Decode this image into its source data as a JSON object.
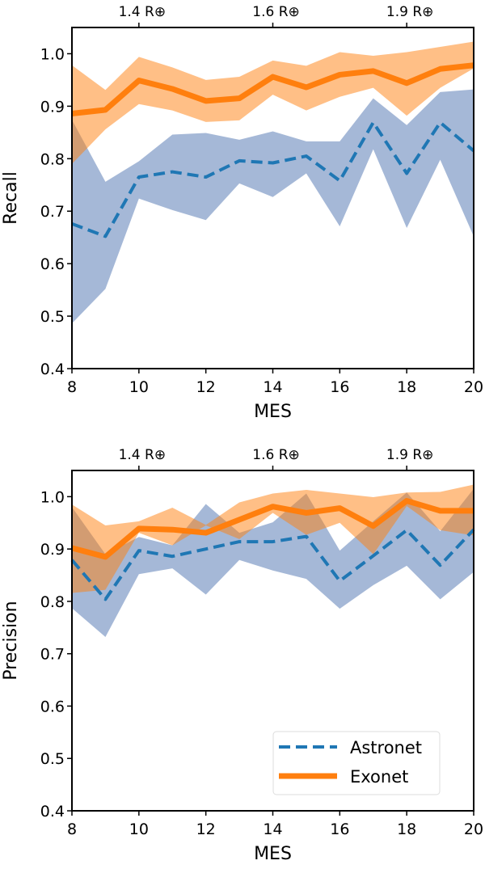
{
  "chart_data": [
    {
      "type": "line",
      "xlabel": "MES",
      "ylabel": "Recall",
      "xlim": [
        8,
        20
      ],
      "ylim": [
        0.4,
        1.05
      ],
      "xticks": [
        8,
        10,
        12,
        14,
        16,
        18,
        20
      ],
      "yticks": [
        0.4,
        0.5,
        0.6,
        0.7,
        0.8,
        0.9,
        1.0
      ],
      "ytick_labels": [
        "0.4",
        "0.5",
        "0.6",
        "0.7",
        "0.8",
        "0.9",
        "1.0"
      ],
      "secondary_xaxis": {
        "position": "top",
        "ticks": [
          10,
          14,
          18
        ],
        "labels": [
          "1.4 R⊕",
          "1.6 R⊕",
          "1.9 R⊕"
        ]
      },
      "grid": false,
      "x": [
        8,
        9,
        10,
        11,
        12,
        13,
        14,
        15,
        16,
        17,
        18,
        19,
        20
      ],
      "series": [
        {
          "name": "Astronet",
          "style": "dashed",
          "color": "#1f77b4",
          "band_color": "#4c72b0",
          "values": [
            0.676,
            0.652,
            0.765,
            0.775,
            0.765,
            0.796,
            0.792,
            0.805,
            0.758,
            0.869,
            0.772,
            0.869,
            0.815
          ],
          "upper": [
            0.874,
            0.756,
            0.795,
            0.846,
            0.849,
            0.836,
            0.852,
            0.833,
            0.833,
            0.915,
            0.864,
            0.927,
            0.932
          ],
          "lower": [
            0.486,
            0.552,
            0.724,
            0.702,
            0.683,
            0.753,
            0.727,
            0.772,
            0.671,
            0.818,
            0.668,
            0.798,
            0.652
          ]
        },
        {
          "name": "Exonet",
          "style": "solid",
          "color": "#ff7f0e",
          "band_color": "#ff7f0e",
          "values": [
            0.886,
            0.893,
            0.949,
            0.933,
            0.91,
            0.915,
            0.956,
            0.936,
            0.96,
            0.967,
            0.944,
            0.971,
            0.978
          ],
          "upper": [
            0.978,
            0.931,
            0.994,
            0.974,
            0.95,
            0.956,
            0.987,
            0.977,
            1.003,
            0.996,
            1.003,
            1.013,
            1.023
          ],
          "lower": [
            0.79,
            0.856,
            0.904,
            0.892,
            0.87,
            0.873,
            0.922,
            0.892,
            0.918,
            0.935,
            0.882,
            0.935,
            0.972
          ]
        }
      ]
    },
    {
      "type": "line",
      "xlabel": "MES",
      "ylabel": "Precision",
      "xlim": [
        8,
        20
      ],
      "ylim": [
        0.4,
        1.05
      ],
      "xticks": [
        8,
        10,
        12,
        14,
        16,
        18,
        20
      ],
      "yticks": [
        0.4,
        0.5,
        0.6,
        0.7,
        0.8,
        0.9,
        1.0
      ],
      "ytick_labels": [
        "0.4",
        "0.5",
        "0.6",
        "0.7",
        "0.8",
        "0.9",
        "1.0"
      ],
      "secondary_xaxis": {
        "position": "top",
        "ticks": [
          10,
          14,
          18
        ],
        "labels": [
          "1.4 R⊕",
          "1.6 R⊕",
          "1.9 R⊕"
        ]
      },
      "grid": false,
      "legend": {
        "position": "lower-right",
        "entries": [
          "Astronet",
          "Exonet"
        ]
      },
      "x": [
        8,
        9,
        10,
        11,
        12,
        13,
        14,
        15,
        16,
        17,
        18,
        19,
        20
      ],
      "series": [
        {
          "name": "Astronet",
          "style": "dashed",
          "color": "#1f77b4",
          "band_color": "#4c72b0",
          "values": [
            0.879,
            0.804,
            0.897,
            0.886,
            0.9,
            0.914,
            0.914,
            0.924,
            0.839,
            0.887,
            0.936,
            0.869,
            0.937
          ],
          "upper": [
            0.98,
            0.89,
            0.923,
            0.907,
            0.986,
            0.931,
            0.951,
            1.006,
            0.897,
            0.953,
            1.008,
            0.934,
            1.015
          ],
          "lower": [
            0.787,
            0.732,
            0.852,
            0.863,
            0.813,
            0.879,
            0.859,
            0.843,
            0.786,
            0.831,
            0.868,
            0.804,
            0.856
          ]
        },
        {
          "name": "Exonet",
          "style": "solid",
          "color": "#ff7f0e",
          "band_color": "#ff7f0e",
          "values": [
            0.902,
            0.885,
            0.939,
            0.937,
            0.931,
            0.956,
            0.981,
            0.969,
            0.978,
            0.944,
            0.992,
            0.973,
            0.973
          ],
          "upper": [
            0.985,
            0.945,
            0.953,
            0.979,
            0.946,
            0.989,
            1.006,
            1.013,
            1.006,
            0.999,
            1.008,
            1.009,
            1.023
          ],
          "lower": [
            0.816,
            0.822,
            0.931,
            0.907,
            0.945,
            0.919,
            0.969,
            0.927,
            0.95,
            0.89,
            0.982,
            0.936,
            0.926
          ]
        }
      ]
    }
  ]
}
